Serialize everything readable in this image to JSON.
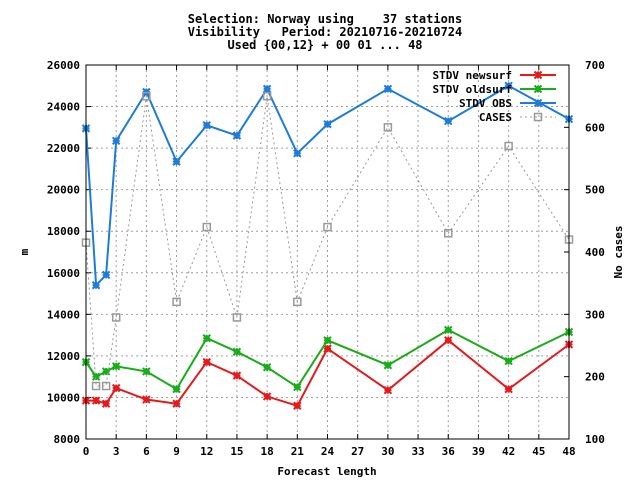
{
  "chart_data": {
    "type": "line",
    "title_lines": [
      "Selection: Norway using    37 stations",
      "Visibility   Period: 20210716-20210724",
      "Used {00,12} + 00 01 ... 48"
    ],
    "xlabel": "Forecast length",
    "ylabel": "m",
    "y2label": "No cases",
    "xlim": [
      0,
      48
    ],
    "ylim": [
      8000,
      26000
    ],
    "y2lim": [
      100,
      700
    ],
    "x_ticks": [
      0,
      3,
      6,
      9,
      12,
      15,
      18,
      21,
      24,
      27,
      30,
      33,
      36,
      39,
      42,
      45,
      48
    ],
    "y_ticks": [
      8000,
      10000,
      12000,
      14000,
      16000,
      18000,
      20000,
      22000,
      24000,
      26000
    ],
    "y2_ticks": [
      100,
      200,
      300,
      400,
      500,
      600,
      700
    ],
    "grid": true,
    "legend_position": "top-right",
    "x": [
      0,
      1,
      2,
      3,
      6,
      9,
      12,
      15,
      18,
      21,
      24,
      30,
      36,
      42,
      48
    ],
    "series": [
      {
        "name": "STDV newsurf",
        "axis": "y",
        "color": "#e41a1c",
        "style": "line",
        "values": [
          9850,
          9850,
          9700,
          10450,
          9900,
          9700,
          11700,
          11050,
          10050,
          9600,
          12350,
          10350,
          12750,
          10400,
          12550
        ]
      },
      {
        "name": "STDV oldsurf",
        "axis": "y",
        "color": "#1aac1a",
        "style": "line",
        "values": [
          11700,
          11000,
          11250,
          11500,
          11250,
          10400,
          12850,
          12200,
          11450,
          10500,
          12750,
          11550,
          13250,
          11750,
          13150
        ]
      },
      {
        "name": "STDV OBS",
        "axis": "y",
        "color": "#1e7cd8",
        "style": "line",
        "values": [
          22950,
          15400,
          15900,
          22350,
          24700,
          21350,
          23100,
          22600,
          24850,
          21750,
          23150,
          24850,
          23300,
          25000,
          23400
        ]
      },
      {
        "name": "CASES",
        "axis": "y2",
        "color": "#999999",
        "style": "dotted",
        "values": [
          415,
          185,
          185,
          295,
          650,
          320,
          440,
          295,
          650,
          320,
          440,
          600,
          430,
          570,
          420
        ]
      }
    ]
  }
}
